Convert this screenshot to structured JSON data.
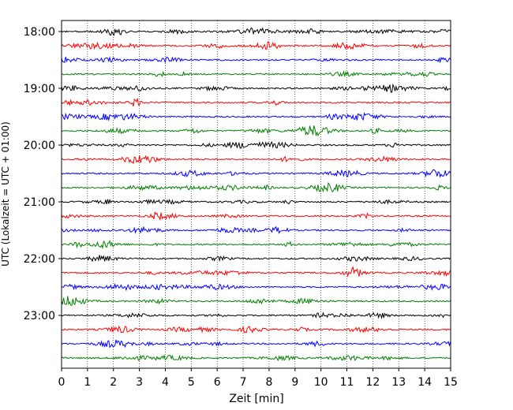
{
  "chart_data": {
    "type": "line",
    "title": "",
    "xlabel": "Zeit  [min]",
    "ylabel": "UTC (Lokalzeit = UTC + 01:00)",
    "xlim": [
      0,
      15
    ],
    "x_ticks": [
      0,
      1,
      2,
      3,
      4,
      5,
      6,
      7,
      8,
      9,
      10,
      11,
      12,
      13,
      14,
      15
    ],
    "x_tick_labels": [
      "0",
      "1",
      "2",
      "3",
      "4",
      "5",
      "6",
      "7",
      "8",
      "9",
      "10",
      "11",
      "12",
      "13",
      "14",
      "15"
    ],
    "y_ticks": [
      {
        "row": 0,
        "label": "18:00"
      },
      {
        "row": 4,
        "label": "19:00"
      },
      {
        "row": 8,
        "label": "20:00"
      },
      {
        "row": 12,
        "label": "21:00"
      },
      {
        "row": 16,
        "label": "22:00"
      },
      {
        "row": 20,
        "label": "23:00"
      }
    ],
    "x_grid": true,
    "grid_style": "dotted",
    "trace_colors": [
      "#000000",
      "#ff0000",
      "#0000ff",
      "#008000"
    ],
    "rows": [
      {
        "start": "18:00",
        "color": "#000000"
      },
      {
        "start": "18:15",
        "color": "#ff0000"
      },
      {
        "start": "18:30",
        "color": "#0000ff"
      },
      {
        "start": "18:45",
        "color": "#008000"
      },
      {
        "start": "19:00",
        "color": "#000000"
      },
      {
        "start": "19:15",
        "color": "#ff0000"
      },
      {
        "start": "19:30",
        "color": "#0000ff"
      },
      {
        "start": "19:45",
        "color": "#008000"
      },
      {
        "start": "20:00",
        "color": "#000000"
      },
      {
        "start": "20:15",
        "color": "#ff0000"
      },
      {
        "start": "20:30",
        "color": "#0000ff"
      },
      {
        "start": "20:45",
        "color": "#008000"
      },
      {
        "start": "21:00",
        "color": "#000000"
      },
      {
        "start": "21:15",
        "color": "#ff0000"
      },
      {
        "start": "21:30",
        "color": "#0000ff"
      },
      {
        "start": "21:45",
        "color": "#008000"
      },
      {
        "start": "22:00",
        "color": "#000000"
      },
      {
        "start": "22:15",
        "color": "#ff0000"
      },
      {
        "start": "22:30",
        "color": "#0000ff"
      },
      {
        "start": "22:45",
        "color": "#008000"
      },
      {
        "start": "23:00",
        "color": "#000000"
      },
      {
        "start": "23:15",
        "color": "#ff0000"
      },
      {
        "start": "23:30",
        "color": "#0000ff"
      },
      {
        "start": "23:45",
        "color": "#008000"
      }
    ]
  }
}
